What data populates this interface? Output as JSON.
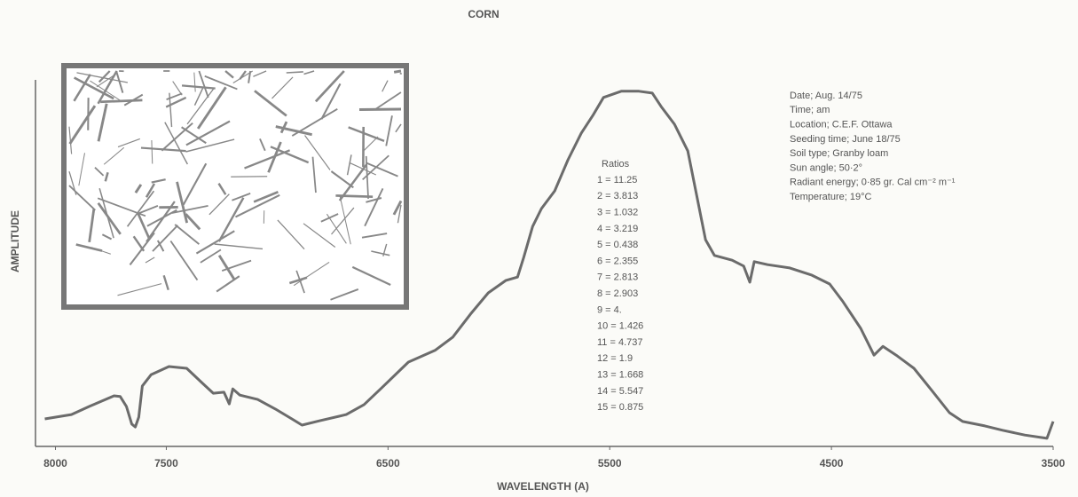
{
  "chart_data": {
    "type": "line",
    "title": "CORN",
    "xlabel": "WAVELENGTH (A)",
    "ylabel": "AMPLITUDE",
    "xlim": [
      8090,
      3500
    ],
    "ylim": [
      0,
      100
    ],
    "xticks": [
      8000,
      7500,
      6500,
      5500,
      4500,
      3500
    ],
    "x": [
      8048,
      7928,
      7848,
      7736,
      7708,
      7680,
      7656,
      7640,
      7624,
      7608,
      7568,
      7488,
      7408,
      7336,
      7288,
      7240,
      7216,
      7200,
      7168,
      7088,
      7008,
      6928,
      6888,
      6808,
      6688,
      6608,
      6528,
      6408,
      6288,
      6208,
      6128,
      6048,
      5968,
      5916,
      5888,
      5848,
      5808,
      5748,
      5688,
      5628,
      5576,
      5528,
      5448,
      5368,
      5308,
      5268,
      5208,
      5148,
      5108,
      5068,
      5028,
      4948,
      4896,
      4868,
      4848,
      4788,
      4688,
      4588,
      4508,
      4448,
      4368,
      4308,
      4268,
      4208,
      4128,
      4048,
      3968,
      3908,
      3808,
      3728,
      3628,
      3528,
      3500
    ],
    "series": [
      {
        "color": "#6b6b6b",
        "values": [
          7.5,
          8.7,
          10.9,
          13.8,
          13.6,
          10.9,
          6.1,
          5.3,
          8,
          16.5,
          19.6,
          21.8,
          21.3,
          17.2,
          14.5,
          14.8,
          11.6,
          15.7,
          14,
          12.8,
          10.2,
          7.3,
          5.8,
          7,
          8.7,
          11.4,
          16,
          23,
          26.2,
          29.8,
          36.1,
          41.9,
          45.3,
          46.2,
          51.6,
          60,
          64.9,
          69.7,
          78.2,
          85.5,
          90.3,
          95.2,
          96.9,
          96.9,
          96.4,
          92.7,
          87.9,
          80.6,
          68.5,
          56.4,
          52.1,
          50.8,
          49.2,
          44.8,
          50.4,
          49.6,
          48.7,
          46.7,
          44.3,
          39.5,
          32.2,
          24.9,
          27.3,
          24.9,
          21.3,
          15.3,
          9.2,
          6.8,
          5.6,
          4.4,
          3.1,
          2.2,
          6.8
        ]
      }
    ],
    "ratios": {
      "title": "Ratios",
      "items": [
        "1 = 11.25",
        "2 = 3.813",
        "3 = 1.032",
        "4 = 3.219",
        "5 = 0.438",
        "6 = 2.355",
        "7 = 2.813",
        "8 = 2.903",
        "9 = 4.",
        "10 = 1.426",
        "11 = 4.737",
        "12 = 1.9",
        "13 = 1.668",
        "14 = 5.547",
        "15 = 0.875"
      ]
    },
    "annotations": [
      "Date; Aug. 14/75",
      "Time; am",
      "Location; C.E.F. Ottawa",
      "Seeding time; June 18/75",
      "Soil type; Granby loam",
      "Sun angle; 50·2°",
      "Radiant energy; 0·85 gr. Cal cm⁻² m⁻¹",
      "Temperature; 19°C"
    ]
  }
}
